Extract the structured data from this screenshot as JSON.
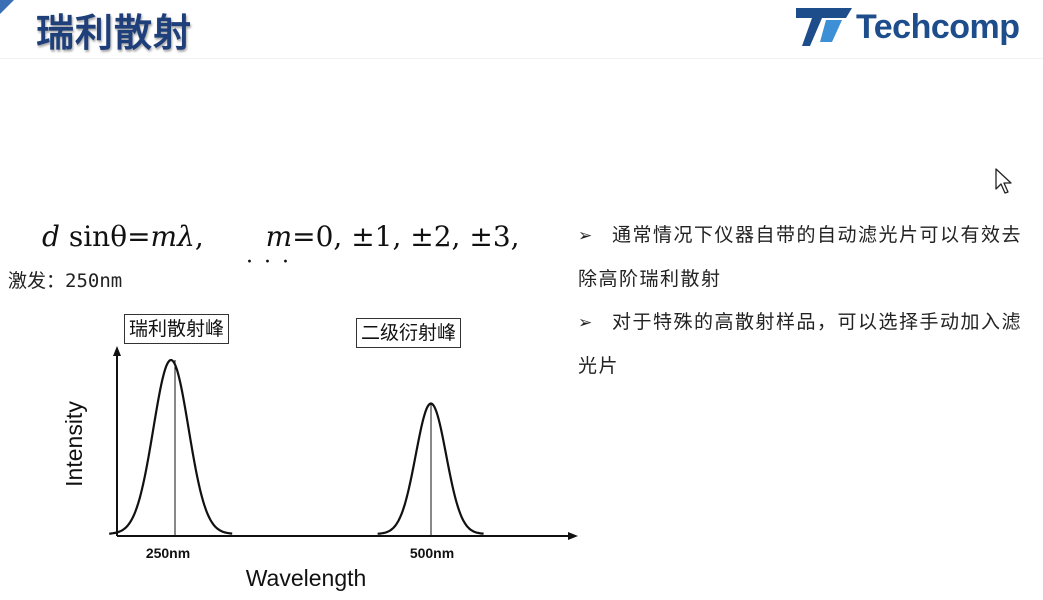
{
  "header": {
    "title": "瑞利散射",
    "logo_text": "Techcomp"
  },
  "colors": {
    "title": "#1e3f7a",
    "logo": "#1e4d8c",
    "accent": "#3a6fb5"
  },
  "equation": {
    "d": "d",
    "sin": "sin",
    "theta": "θ",
    "eq1": "=",
    "m": "m",
    "lambda": "λ",
    "comma": ",",
    "m2": "m",
    "eq2": "=",
    "rhs": "0, ±1, ±2, ±3,",
    "dots": "· · ·"
  },
  "excitation_label": "激发：250nm",
  "bullets": [
    {
      "arrow": "➢",
      "text": "通常情况下仪器自带的自动滤光片可以有效去除高阶瑞利散射"
    },
    {
      "arrow": "➢",
      "text": "对于特殊的高散射样品，可以选择手动加入滤光片"
    }
  ],
  "chart_data": {
    "type": "line",
    "title": "",
    "xlabel": "Wavelength",
    "ylabel": "Intensity",
    "grid": false,
    "x_ticks": [
      "250nm",
      "500nm"
    ],
    "annotations": [
      "瑞利散射峰",
      "二级衍射峰"
    ],
    "series": [
      {
        "peak_x": 250,
        "relative_height": 1.0,
        "width_nm": 44
      },
      {
        "peak_x": 500,
        "relative_height": 0.75,
        "width_nm": 38
      }
    ]
  }
}
